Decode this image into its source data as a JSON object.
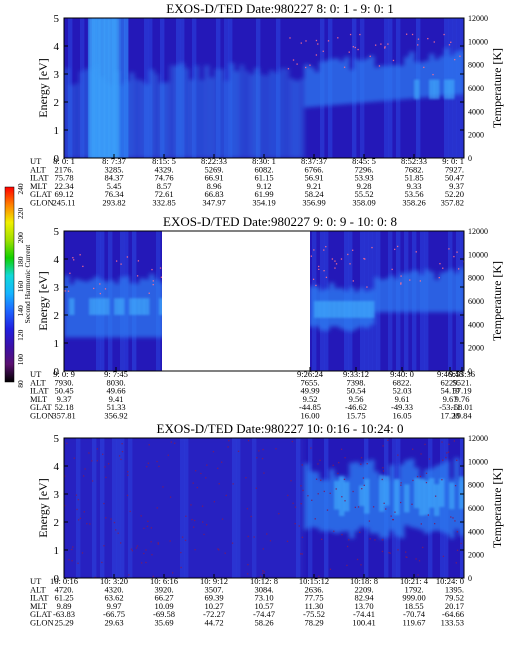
{
  "chart_data": [
    {
      "type": "heatmap",
      "title": "EXOS-D/TED   Date:980227  8: 0: 1 - 9: 0: 1",
      "ylabel": "Energy [eV]",
      "y2label": "Temperature [K]",
      "ylim": [
        0,
        5
      ],
      "y2lim": [
        0,
        12000
      ],
      "yticks": [
        "0",
        "1",
        "2",
        "3",
        "4",
        "5"
      ],
      "y2ticks": [
        "0",
        "2000",
        "4000",
        "6000",
        "8000",
        "10000",
        "12000"
      ],
      "row_labels": [
        "UT",
        "ALT",
        "ILAT",
        "MLT",
        "GLAT",
        "GLON"
      ],
      "columns": [
        [
          "8: 0: 1",
          "2176.",
          "75.78",
          "22.34",
          "69.12",
          "245.11"
        ],
        [
          "8: 7:37",
          "3285.",
          "84.37",
          "5.45",
          "76.34",
          "293.82"
        ],
        [
          "8:15: 5",
          "4329.",
          "74.76",
          "8.57",
          "72.61",
          "332.85"
        ],
        [
          "8:22:33",
          "5269.",
          "66.91",
          "8.96",
          "66.83",
          "347.97"
        ],
        [
          "8:30: 1",
          "6082.",
          "61.15",
          "9.12",
          "61.99",
          "354.19"
        ],
        [
          "8:37:37",
          "6766.",
          "56.91",
          "9.21",
          "58.24",
          "356.99"
        ],
        [
          "8:45: 5",
          "7296.",
          "53.93",
          "9.28",
          "55.52",
          "358.09"
        ],
        [
          "8:52:33",
          "7682.",
          "51.85",
          "9.33",
          "53.56",
          "358.26"
        ],
        [
          "9: 0: 1",
          "7927.",
          "50.47",
          "9.37",
          "52.20",
          "357.82"
        ]
      ],
      "gaps": []
    },
    {
      "type": "heatmap",
      "title": "EXOS-D/TED   Date:980227  9: 0: 9 - 10: 0: 8",
      "ylabel": "Energy [eV]",
      "y2label": "Temperature [K]",
      "ylim": [
        0,
        5
      ],
      "y2lim": [
        0,
        12000
      ],
      "yticks": [
        "0",
        "1",
        "2",
        "3",
        "4",
        "5"
      ],
      "y2ticks": [
        "0",
        "2000",
        "4000",
        "6000",
        "8000",
        "10000",
        "12000"
      ],
      "row_labels": [
        "UT",
        "ALT",
        "ILAT",
        "MLT",
        "GLAT",
        "GLON"
      ],
      "columns": [
        [
          "9: 0: 9",
          "7930.",
          "50.45",
          "9.37",
          "52.18",
          "357.81"
        ],
        [
          "9: 7:45",
          "8030.",
          "49.66",
          "9.41",
          "51.33",
          "356.92"
        ],
        [
          "9:26:24",
          "7655.",
          "49.99",
          "9.52",
          "-44.85",
          "16.00"
        ],
        [
          "9:33:12",
          "7398.",
          "50.54",
          "9.56",
          "-46.62",
          "15.75"
        ],
        [
          "9:40: 0",
          "6822.",
          "52.03",
          "9.61",
          "-49.33",
          "16.05"
        ],
        [
          "9:46:48",
          "6229.",
          "54.19",
          "9.67",
          "-53.11",
          "17.20"
        ],
        [
          "9:53:36",
          "5521.",
          "57.19",
          "9.76",
          "-58.01",
          "19.84"
        ]
      ],
      "gaps": [
        [
          0.245,
          0.615
        ]
      ]
    },
    {
      "type": "heatmap",
      "title": "EXOS-D/TED   Date:980227  10: 0:16 - 10:24: 0",
      "ylabel": "Energy [eV]",
      "y2label": "Temperature [K]",
      "ylim": [
        0,
        5
      ],
      "y2lim": [
        0,
        12000
      ],
      "yticks": [
        "0",
        "1",
        "2",
        "3",
        "4",
        "5"
      ],
      "y2ticks": [
        "0",
        "2000",
        "4000",
        "6000",
        "8000",
        "10000",
        "12000"
      ],
      "row_labels": [
        "UT",
        "ALT",
        "ILAT",
        "MLT",
        "GLAT",
        "GLON"
      ],
      "columns": [
        [
          "10: 0:16",
          "4720.",
          "61.25",
          "9.89",
          "-63.83",
          "25.29"
        ],
        [
          "10: 3:20",
          "4320.",
          "63.62",
          "9.97",
          "-66.75",
          "29.63"
        ],
        [
          "10: 6:16",
          "3920.",
          "66.27",
          "10.09",
          "-69.58",
          "35.69"
        ],
        [
          "10: 9:12",
          "3507.",
          "69.39",
          "10.27",
          "-72.27",
          "44.72"
        ],
        [
          "10:12: 8",
          "3084.",
          "73.10",
          "10.57",
          "-74.47",
          "58.26"
        ],
        [
          "10:15:12",
          "2636.",
          "77.75",
          "11.30",
          "-75.52",
          "78.29"
        ],
        [
          "10:18: 8",
          "2209.",
          "82.94",
          "13.70",
          "-74.41",
          "100.41"
        ],
        [
          "10:21: 4",
          "1792.",
          "999.00",
          "18.55",
          "-70.74",
          "119.67"
        ],
        [
          "10:24: 0",
          "1395.",
          "79.52",
          "20.17",
          "-64.66",
          "133.53"
        ]
      ],
      "gaps": []
    }
  ],
  "colorbar": {
    "label": "Second Harmonic Current",
    "ticks": [
      "80",
      "100",
      "120",
      "140",
      "160",
      "180",
      "200",
      "220",
      "240"
    ],
    "stops": [
      "#000000",
      "#5a1070",
      "#3b10a8",
      "#2020e0",
      "#1e64ff",
      "#14b4ff",
      "#10d8d8",
      "#10d000",
      "#a0e000",
      "#f0f000",
      "#ff8000",
      "#ff0000"
    ]
  },
  "colors": {
    "background_field": "#2418b8",
    "mid_field": "#2a3cd8",
    "band": "#2f7cf2",
    "band_core": "#45b8ff",
    "noise": "#7a1c64",
    "gap": "#ffffff"
  }
}
